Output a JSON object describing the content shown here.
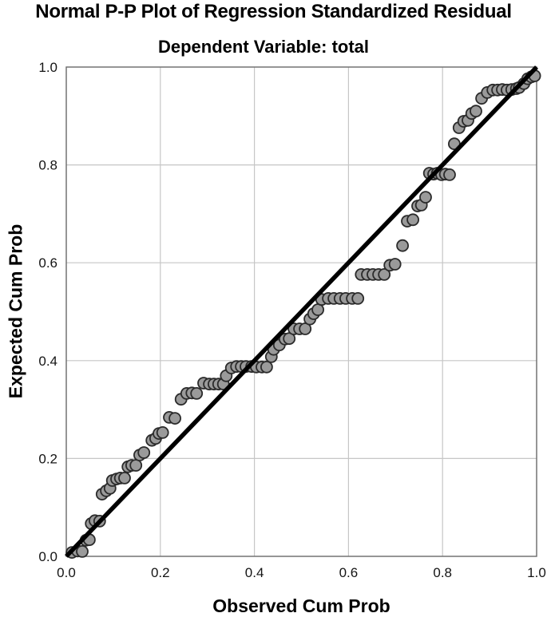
{
  "title": "Normal P-P Plot of Regression Standardized Residual",
  "subtitle": "Dependent Variable: total",
  "chart_data": {
    "type": "scatter",
    "title": "Normal P-P Plot of Regression Standardized Residual",
    "subtitle": "Dependent Variable: total",
    "xlabel": "Observed Cum Prob",
    "ylabel": "Expected Cum Prob",
    "xlim": [
      0,
      1
    ],
    "ylim": [
      0,
      1
    ],
    "xticks": [
      0,
      0.2,
      0.4,
      0.6,
      0.8,
      1
    ],
    "yticks": [
      0,
      0.2,
      0.4,
      0.6,
      0.8,
      1
    ],
    "xtick_labels": [
      "0.0",
      "0.2",
      "0.4",
      "0.6",
      "0.8",
      "1.0"
    ],
    "ytick_labels": [
      "0.0",
      "0.2",
      "0.4",
      "0.6",
      "0.8",
      "1.0"
    ],
    "grid": true,
    "legend": "none",
    "reference_line": {
      "name": "identity-line",
      "from": [
        0,
        0
      ],
      "to": [
        1,
        1
      ]
    },
    "series": [
      {
        "name": "regression-standardized-residuals",
        "points": [
          [
            0.012,
            0.008
          ],
          [
            0.024,
            0.011
          ],
          [
            0.034,
            0.01
          ],
          [
            0.042,
            0.033
          ],
          [
            0.049,
            0.034
          ],
          [
            0.053,
            0.067
          ],
          [
            0.061,
            0.073
          ],
          [
            0.071,
            0.072
          ],
          [
            0.076,
            0.127
          ],
          [
            0.085,
            0.134
          ],
          [
            0.093,
            0.139
          ],
          [
            0.098,
            0.155
          ],
          [
            0.107,
            0.158
          ],
          [
            0.115,
            0.16
          ],
          [
            0.124,
            0.16
          ],
          [
            0.131,
            0.183
          ],
          [
            0.139,
            0.186
          ],
          [
            0.148,
            0.186
          ],
          [
            0.156,
            0.207
          ],
          [
            0.165,
            0.212
          ],
          [
            0.182,
            0.237
          ],
          [
            0.19,
            0.241
          ],
          [
            0.197,
            0.251
          ],
          [
            0.205,
            0.253
          ],
          [
            0.219,
            0.284
          ],
          [
            0.231,
            0.282
          ],
          [
            0.244,
            0.321
          ],
          [
            0.256,
            0.333
          ],
          [
            0.267,
            0.334
          ],
          [
            0.277,
            0.333
          ],
          [
            0.292,
            0.354
          ],
          [
            0.304,
            0.352
          ],
          [
            0.314,
            0.352
          ],
          [
            0.324,
            0.352
          ],
          [
            0.334,
            0.352
          ],
          [
            0.34,
            0.369
          ],
          [
            0.351,
            0.385
          ],
          [
            0.362,
            0.388
          ],
          [
            0.372,
            0.388
          ],
          [
            0.382,
            0.388
          ],
          [
            0.394,
            0.388
          ],
          [
            0.404,
            0.387
          ],
          [
            0.416,
            0.387
          ],
          [
            0.426,
            0.387
          ],
          [
            0.436,
            0.408
          ],
          [
            0.441,
            0.423
          ],
          [
            0.453,
            0.432
          ],
          [
            0.465,
            0.444
          ],
          [
            0.474,
            0.445
          ],
          [
            0.484,
            0.465
          ],
          [
            0.496,
            0.465
          ],
          [
            0.508,
            0.465
          ],
          [
            0.518,
            0.485
          ],
          [
            0.526,
            0.496
          ],
          [
            0.535,
            0.504
          ],
          [
            0.543,
            0.525
          ],
          [
            0.557,
            0.527
          ],
          [
            0.569,
            0.527
          ],
          [
            0.582,
            0.527
          ],
          [
            0.594,
            0.527
          ],
          [
            0.608,
            0.527
          ],
          [
            0.62,
            0.527
          ],
          [
            0.627,
            0.576
          ],
          [
            0.64,
            0.576
          ],
          [
            0.652,
            0.576
          ],
          [
            0.664,
            0.576
          ],
          [
            0.676,
            0.576
          ],
          [
            0.688,
            0.595
          ],
          [
            0.699,
            0.597
          ],
          [
            0.715,
            0.635
          ],
          [
            0.725,
            0.685
          ],
          [
            0.737,
            0.688
          ],
          [
            0.747,
            0.716
          ],
          [
            0.755,
            0.718
          ],
          [
            0.764,
            0.734
          ],
          [
            0.772,
            0.783
          ],
          [
            0.781,
            0.781
          ],
          [
            0.789,
            0.783
          ],
          [
            0.798,
            0.78
          ],
          [
            0.806,
            0.781
          ],
          [
            0.815,
            0.78
          ],
          [
            0.825,
            0.843
          ],
          [
            0.835,
            0.876
          ],
          [
            0.845,
            0.889
          ],
          [
            0.854,
            0.891
          ],
          [
            0.862,
            0.905
          ],
          [
            0.871,
            0.91
          ],
          [
            0.883,
            0.936
          ],
          [
            0.895,
            0.948
          ],
          [
            0.907,
            0.953
          ],
          [
            0.917,
            0.953
          ],
          [
            0.927,
            0.954
          ],
          [
            0.937,
            0.953
          ],
          [
            0.947,
            0.954
          ],
          [
            0.957,
            0.956
          ],
          [
            0.963,
            0.958
          ],
          [
            0.973,
            0.966
          ],
          [
            0.981,
            0.976
          ],
          [
            0.989,
            0.98
          ],
          [
            0.996,
            0.982
          ]
        ]
      }
    ],
    "colors": {
      "point_fill": "#9a9a9a",
      "point_stroke": "#2b2b2b",
      "reference_line": "#000000",
      "grid": "#c6c6c6",
      "frame": "#6a6a6a",
      "text": "#141414"
    }
  }
}
